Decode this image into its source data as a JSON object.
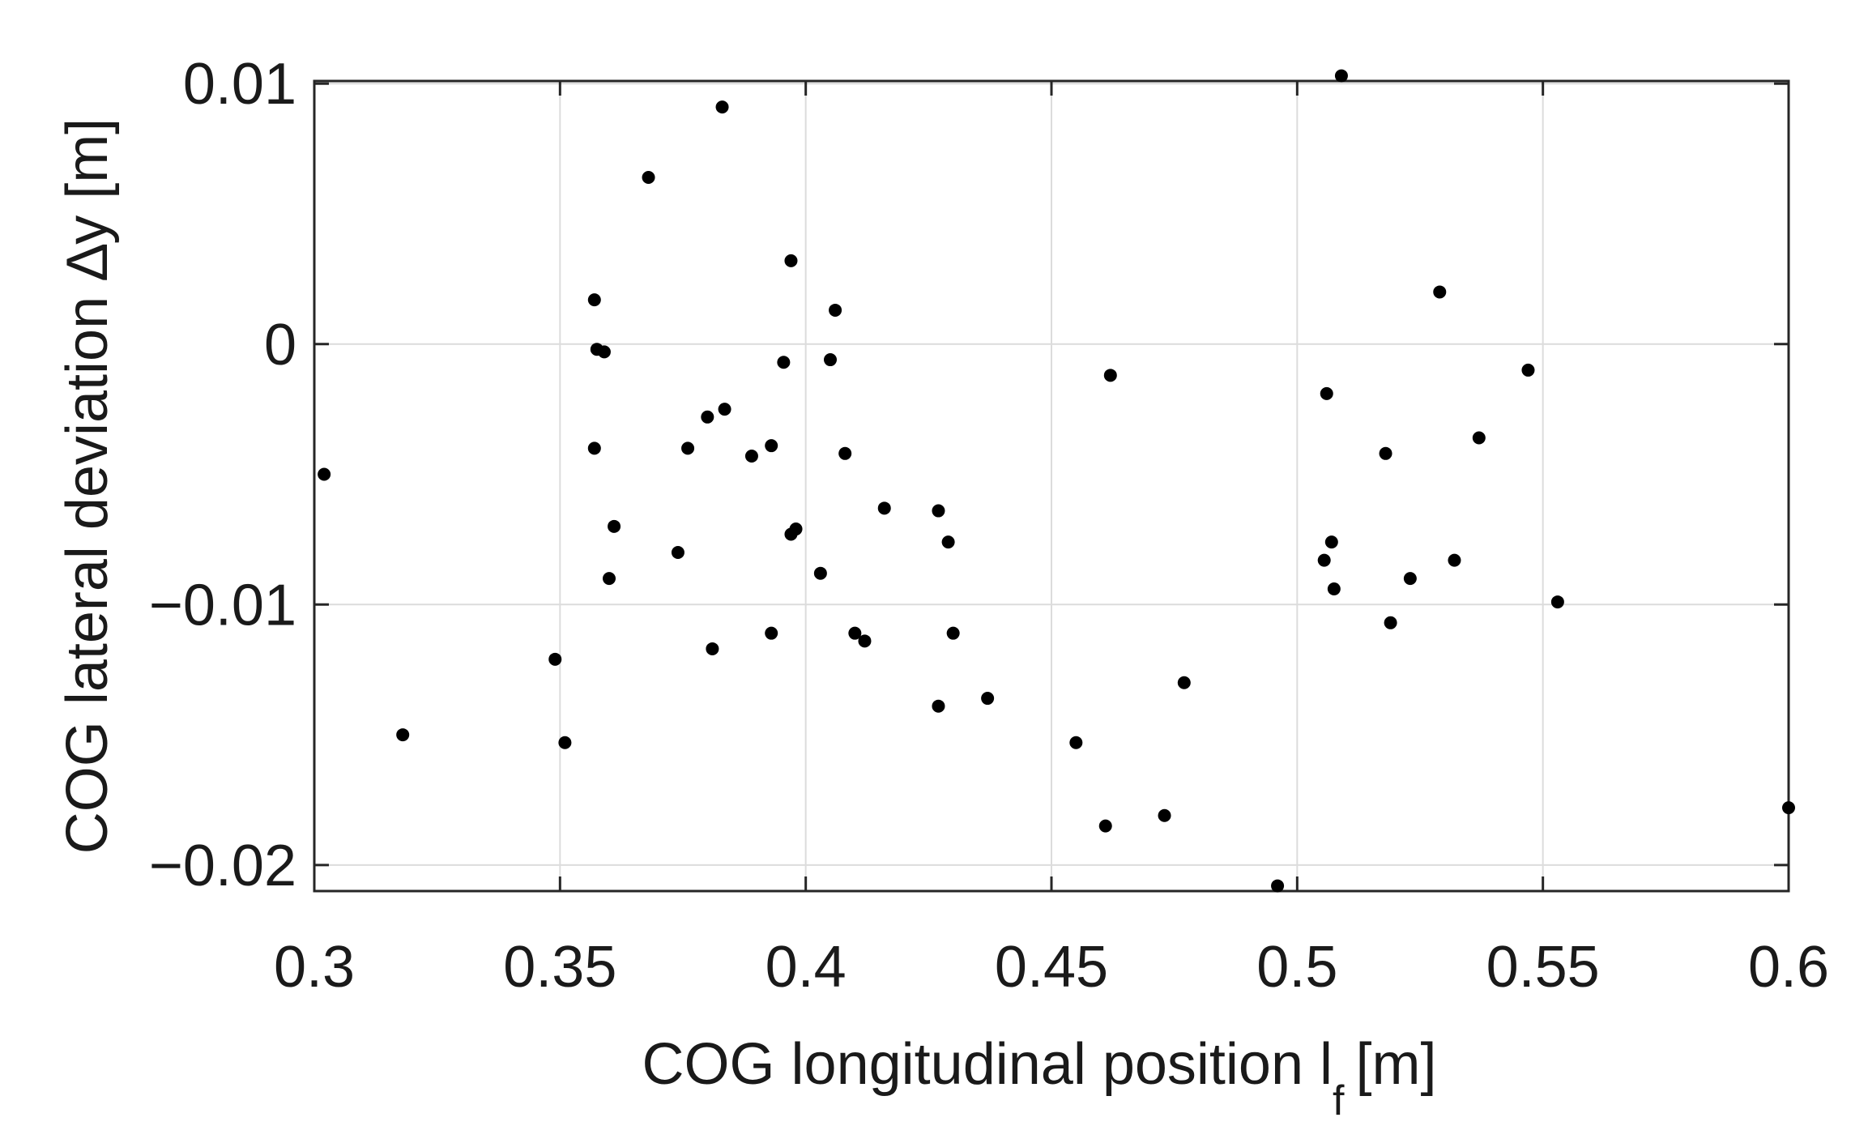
{
  "chart_data": {
    "type": "scatter",
    "xlabel": {
      "main": "COG longitudinal position l",
      "subscript": "f",
      "unit": "[m]"
    },
    "ylabel": "COG lateral deviation ∆y [m]",
    "xlim": [
      0.3,
      0.6
    ],
    "ylim": [
      -0.021,
      0.0101
    ],
    "xticks": [
      {
        "value": 0.3,
        "label": "0.3"
      },
      {
        "value": 0.35,
        "label": "0.35"
      },
      {
        "value": 0.4,
        "label": "0.4"
      },
      {
        "value": 0.45,
        "label": "0.45"
      },
      {
        "value": 0.5,
        "label": "0.5"
      },
      {
        "value": 0.55,
        "label": "0.55"
      },
      {
        "value": 0.6,
        "label": "0.6"
      }
    ],
    "yticks": [
      {
        "value": 0.01,
        "label": "0.01"
      },
      {
        "value": 0,
        "label": "0"
      },
      {
        "value": -0.01,
        "label": "−0.01"
      },
      {
        "value": -0.02,
        "label": "−0.02"
      }
    ],
    "grid": true,
    "marker_color": "#000000",
    "points": [
      {
        "x": 0.302,
        "y": -0.005
      },
      {
        "x": 0.318,
        "y": -0.015
      },
      {
        "x": 0.349,
        "y": -0.0121
      },
      {
        "x": 0.351,
        "y": -0.0153
      },
      {
        "x": 0.357,
        "y": 0.0017
      },
      {
        "x": 0.357,
        "y": -0.004
      },
      {
        "x": 0.3575,
        "y": -0.0002
      },
      {
        "x": 0.359,
        "y": -0.0003
      },
      {
        "x": 0.36,
        "y": -0.009
      },
      {
        "x": 0.361,
        "y": -0.007
      },
      {
        "x": 0.368,
        "y": 0.0064
      },
      {
        "x": 0.374,
        "y": -0.008
      },
      {
        "x": 0.376,
        "y": -0.004
      },
      {
        "x": 0.38,
        "y": -0.0028
      },
      {
        "x": 0.381,
        "y": -0.0117
      },
      {
        "x": 0.383,
        "y": 0.0091
      },
      {
        "x": 0.3835,
        "y": -0.0025
      },
      {
        "x": 0.389,
        "y": -0.0043
      },
      {
        "x": 0.393,
        "y": -0.0039
      },
      {
        "x": 0.393,
        "y": -0.0111
      },
      {
        "x": 0.3955,
        "y": -0.0007
      },
      {
        "x": 0.397,
        "y": 0.0032
      },
      {
        "x": 0.397,
        "y": -0.0073
      },
      {
        "x": 0.398,
        "y": -0.0071
      },
      {
        "x": 0.403,
        "y": -0.0088
      },
      {
        "x": 0.405,
        "y": -0.0006
      },
      {
        "x": 0.406,
        "y": 0.0013
      },
      {
        "x": 0.408,
        "y": -0.0042
      },
      {
        "x": 0.41,
        "y": -0.0111
      },
      {
        "x": 0.412,
        "y": -0.0114
      },
      {
        "x": 0.416,
        "y": -0.0063
      },
      {
        "x": 0.427,
        "y": -0.0064
      },
      {
        "x": 0.427,
        "y": -0.0139
      },
      {
        "x": 0.429,
        "y": -0.0076
      },
      {
        "x": 0.43,
        "y": -0.0111
      },
      {
        "x": 0.437,
        "y": -0.0136
      },
      {
        "x": 0.455,
        "y": -0.0153
      },
      {
        "x": 0.461,
        "y": -0.0185
      },
      {
        "x": 0.462,
        "y": -0.0012
      },
      {
        "x": 0.473,
        "y": -0.0181
      },
      {
        "x": 0.477,
        "y": -0.013
      },
      {
        "x": 0.496,
        "y": -0.0208
      },
      {
        "x": 0.5055,
        "y": -0.0083
      },
      {
        "x": 0.506,
        "y": -0.0019
      },
      {
        "x": 0.507,
        "y": -0.0076
      },
      {
        "x": 0.5075,
        "y": -0.0094
      },
      {
        "x": 0.509,
        "y": 0.0103
      },
      {
        "x": 0.518,
        "y": -0.0042
      },
      {
        "x": 0.519,
        "y": -0.0107
      },
      {
        "x": 0.523,
        "y": -0.009
      },
      {
        "x": 0.529,
        "y": 0.002
      },
      {
        "x": 0.532,
        "y": -0.0083
      },
      {
        "x": 0.537,
        "y": -0.0036
      },
      {
        "x": 0.547,
        "y": -0.001
      },
      {
        "x": 0.553,
        "y": -0.0099
      },
      {
        "x": 0.6,
        "y": -0.0178
      }
    ]
  }
}
